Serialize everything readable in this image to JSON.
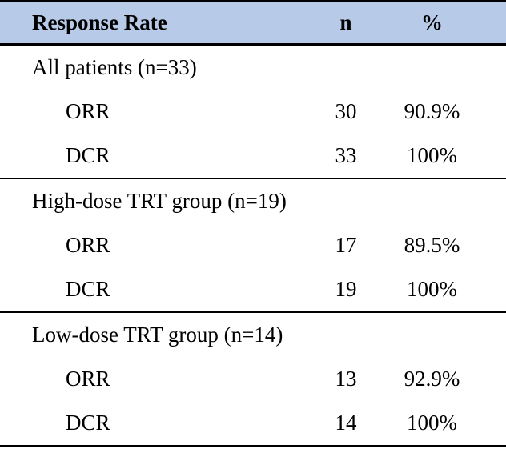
{
  "header": {
    "label": "Response Rate",
    "n": "n",
    "pct": "%"
  },
  "sections": [
    {
      "title": "All patients (n=33)",
      "rows": [
        {
          "label": "ORR",
          "n": "30",
          "pct": "90.9%"
        },
        {
          "label": "DCR",
          "n": "33",
          "pct": "100%"
        }
      ]
    },
    {
      "title": "High-dose TRT group (n=19)",
      "rows": [
        {
          "label": "ORR",
          "n": "17",
          "pct": "89.5%"
        },
        {
          "label": "DCR",
          "n": "19",
          "pct": "100%"
        }
      ]
    },
    {
      "title": "Low-dose TRT group (n=14)",
      "rows": [
        {
          "label": "ORR",
          "n": "13",
          "pct": "92.9%"
        },
        {
          "label": "DCR",
          "n": "14",
          "pct": "100%"
        }
      ]
    }
  ],
  "colors": {
    "header_bg": "#B7CAE7",
    "rule": "#000000",
    "text": "#000000",
    "background": "#FFFFFF"
  }
}
